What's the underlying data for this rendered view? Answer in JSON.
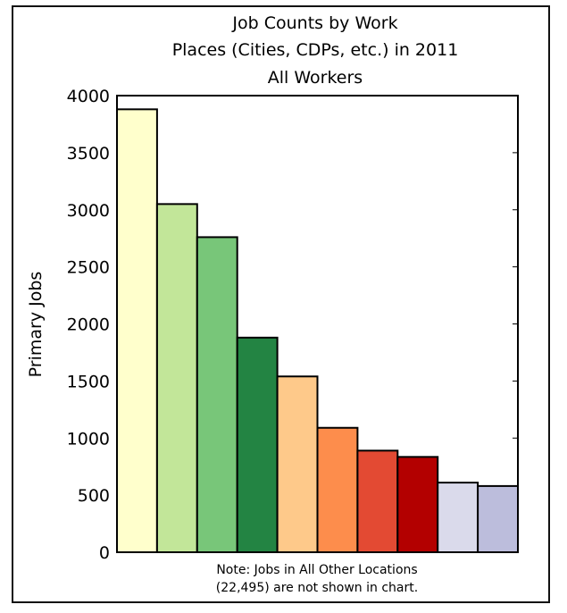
{
  "chart_data": {
    "type": "bar",
    "title_lines": [
      "Job Counts by Work",
      "Places (Cities, CDPs, etc.) in 2011",
      "All Workers"
    ],
    "xlabel": "",
    "ylabel": "Primary Jobs",
    "ylim": [
      0,
      4000
    ],
    "yticks": [
      0,
      500,
      1000,
      1500,
      2000,
      2500,
      3000,
      3500,
      4000
    ],
    "values": [
      3880,
      3050,
      2760,
      1880,
      1540,
      1090,
      890,
      835,
      610,
      580
    ],
    "colors": [
      "#ffffcc",
      "#c2e699",
      "#78c679",
      "#238443",
      "#fec98a",
      "#fd8d4c",
      "#e34a33",
      "#b30000",
      "#dadaeb",
      "#bcbddc"
    ],
    "note_lines": [
      "Note: Jobs in All Other Locations",
      "(22,495) are not shown in chart."
    ],
    "grid": false,
    "legend": "none"
  }
}
